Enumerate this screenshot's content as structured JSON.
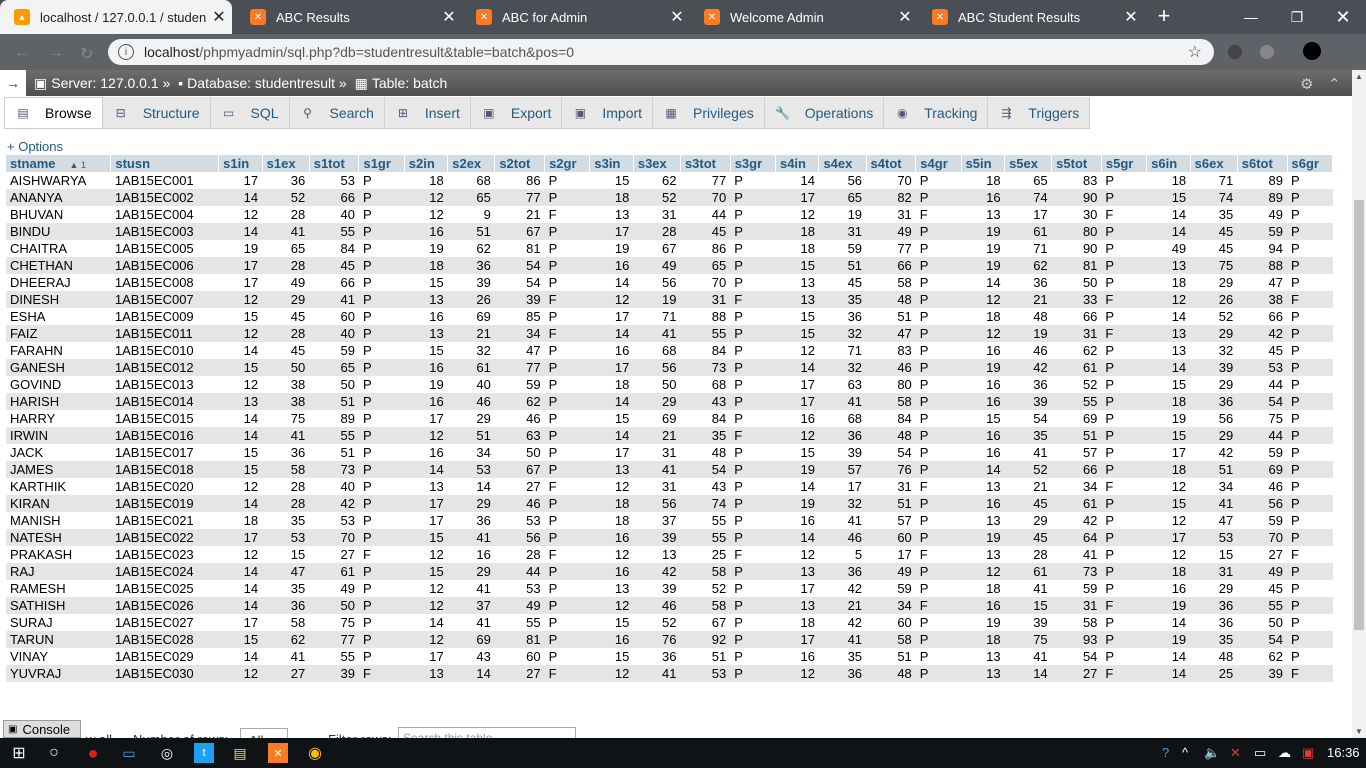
{
  "browser": {
    "tabs": [
      {
        "title": "localhost / 127.0.0.1 / studentr",
        "active": true,
        "icon": "phpmyadmin-icon"
      },
      {
        "title": "ABC Results",
        "active": false,
        "icon": "xampp-icon"
      },
      {
        "title": "ABC for Admin",
        "active": false,
        "icon": "xampp-icon"
      },
      {
        "title": "Welcome Admin",
        "active": false,
        "icon": "xampp-icon"
      },
      {
        "title": "ABC Student Results",
        "active": false,
        "icon": "xampp-icon"
      }
    ],
    "url_host": "localhost",
    "url_path": "/phpmyadmin/sql.php?db=studentresult&table=batch&pos=0"
  },
  "breadcrumb": {
    "server": "Server: 127.0.0.1 »",
    "database": "Database: studentresult »",
    "table": "Table: batch"
  },
  "menu_tabs": [
    {
      "label": "Browse",
      "selected": true,
      "icon": "browse-icon"
    },
    {
      "label": "Structure",
      "selected": false,
      "icon": "structure-icon"
    },
    {
      "label": "SQL",
      "selected": false,
      "icon": "sql-icon"
    },
    {
      "label": "Search",
      "selected": false,
      "icon": "search-icon"
    },
    {
      "label": "Insert",
      "selected": false,
      "icon": "insert-icon"
    },
    {
      "label": "Export",
      "selected": false,
      "icon": "export-icon"
    },
    {
      "label": "Import",
      "selected": false,
      "icon": "import-icon"
    },
    {
      "label": "Privileges",
      "selected": false,
      "icon": "privileges-icon"
    },
    {
      "label": "Operations",
      "selected": false,
      "icon": "wrench-icon"
    },
    {
      "label": "Tracking",
      "selected": false,
      "icon": "eye-icon"
    },
    {
      "label": "Triggers",
      "selected": false,
      "icon": "triggers-icon"
    }
  ],
  "options_label": "+ Options",
  "table": {
    "sort_marker": "▲ 1",
    "columns": [
      "stname",
      "stusn",
      "s1in",
      "s1ex",
      "s1tot",
      "s1gr",
      "s2in",
      "s2ex",
      "s2tot",
      "s2gr",
      "s3in",
      "s3ex",
      "s3tot",
      "s3gr",
      "s4in",
      "s4ex",
      "s4tot",
      "s4gr",
      "s5in",
      "s5ex",
      "s5tot",
      "s5gr",
      "s6in",
      "s6ex",
      "s6tot",
      "s6gr"
    ],
    "rows": [
      [
        "AISHWARYA",
        "1AB15EC001",
        "17",
        "36",
        "53",
        "P",
        "18",
        "68",
        "86",
        "P",
        "15",
        "62",
        "77",
        "P",
        "14",
        "56",
        "70",
        "P",
        "18",
        "65",
        "83",
        "P",
        "18",
        "71",
        "89",
        "P"
      ],
      [
        "ANANYA",
        "1AB15EC002",
        "14",
        "52",
        "66",
        "P",
        "12",
        "65",
        "77",
        "P",
        "18",
        "52",
        "70",
        "P",
        "17",
        "65",
        "82",
        "P",
        "16",
        "74",
        "90",
        "P",
        "15",
        "74",
        "89",
        "P"
      ],
      [
        "BHUVAN",
        "1AB15EC004",
        "12",
        "28",
        "40",
        "P",
        "12",
        "9",
        "21",
        "F",
        "13",
        "31",
        "44",
        "P",
        "12",
        "19",
        "31",
        "F",
        "13",
        "17",
        "30",
        "F",
        "14",
        "35",
        "49",
        "P"
      ],
      [
        "BINDU",
        "1AB15EC003",
        "14",
        "41",
        "55",
        "P",
        "16",
        "51",
        "67",
        "P",
        "17",
        "28",
        "45",
        "P",
        "18",
        "31",
        "49",
        "P",
        "19",
        "61",
        "80",
        "P",
        "14",
        "45",
        "59",
        "P"
      ],
      [
        "CHAITRA",
        "1AB15EC005",
        "19",
        "65",
        "84",
        "P",
        "19",
        "62",
        "81",
        "P",
        "19",
        "67",
        "86",
        "P",
        "18",
        "59",
        "77",
        "P",
        "19",
        "71",
        "90",
        "P",
        "49",
        "45",
        "94",
        "P"
      ],
      [
        "CHETHAN",
        "1AB15EC006",
        "17",
        "28",
        "45",
        "P",
        "18",
        "36",
        "54",
        "P",
        "16",
        "49",
        "65",
        "P",
        "15",
        "51",
        "66",
        "P",
        "19",
        "62",
        "81",
        "P",
        "13",
        "75",
        "88",
        "P"
      ],
      [
        "DHEERAJ",
        "1AB15EC008",
        "17",
        "49",
        "66",
        "P",
        "15",
        "39",
        "54",
        "P",
        "14",
        "56",
        "70",
        "P",
        "13",
        "45",
        "58",
        "P",
        "14",
        "36",
        "50",
        "P",
        "18",
        "29",
        "47",
        "P"
      ],
      [
        "DINESH",
        "1AB15EC007",
        "12",
        "29",
        "41",
        "P",
        "13",
        "26",
        "39",
        "F",
        "12",
        "19",
        "31",
        "F",
        "13",
        "35",
        "48",
        "P",
        "12",
        "21",
        "33",
        "F",
        "12",
        "26",
        "38",
        "F"
      ],
      [
        "ESHA",
        "1AB15EC009",
        "15",
        "45",
        "60",
        "P",
        "16",
        "69",
        "85",
        "P",
        "17",
        "71",
        "88",
        "P",
        "15",
        "36",
        "51",
        "P",
        "18",
        "48",
        "66",
        "P",
        "14",
        "52",
        "66",
        "P"
      ],
      [
        "FAIZ",
        "1AB15EC011",
        "12",
        "28",
        "40",
        "P",
        "13",
        "21",
        "34",
        "F",
        "14",
        "41",
        "55",
        "P",
        "15",
        "32",
        "47",
        "P",
        "12",
        "19",
        "31",
        "F",
        "13",
        "29",
        "42",
        "P"
      ],
      [
        "FARAHN",
        "1AB15EC010",
        "14",
        "45",
        "59",
        "P",
        "15",
        "32",
        "47",
        "P",
        "16",
        "68",
        "84",
        "P",
        "12",
        "71",
        "83",
        "P",
        "16",
        "46",
        "62",
        "P",
        "13",
        "32",
        "45",
        "P"
      ],
      [
        "GANESH",
        "1AB15EC012",
        "15",
        "50",
        "65",
        "P",
        "16",
        "61",
        "77",
        "P",
        "17",
        "56",
        "73",
        "P",
        "14",
        "32",
        "46",
        "P",
        "19",
        "42",
        "61",
        "P",
        "14",
        "39",
        "53",
        "P"
      ],
      [
        "GOVIND",
        "1AB15EC013",
        "12",
        "38",
        "50",
        "P",
        "19",
        "40",
        "59",
        "P",
        "18",
        "50",
        "68",
        "P",
        "17",
        "63",
        "80",
        "P",
        "16",
        "36",
        "52",
        "P",
        "15",
        "29",
        "44",
        "P"
      ],
      [
        "HARISH",
        "1AB15EC014",
        "13",
        "38",
        "51",
        "P",
        "16",
        "46",
        "62",
        "P",
        "14",
        "29",
        "43",
        "P",
        "17",
        "41",
        "58",
        "P",
        "16",
        "39",
        "55",
        "P",
        "18",
        "36",
        "54",
        "P"
      ],
      [
        "HARRY",
        "1AB15EC015",
        "14",
        "75",
        "89",
        "P",
        "17",
        "29",
        "46",
        "P",
        "15",
        "69",
        "84",
        "P",
        "16",
        "68",
        "84",
        "P",
        "15",
        "54",
        "69",
        "P",
        "19",
        "56",
        "75",
        "P"
      ],
      [
        "IRWIN",
        "1AB15EC016",
        "14",
        "41",
        "55",
        "P",
        "12",
        "51",
        "63",
        "P",
        "14",
        "21",
        "35",
        "F",
        "12",
        "36",
        "48",
        "P",
        "16",
        "35",
        "51",
        "P",
        "15",
        "29",
        "44",
        "P"
      ],
      [
        "JACK",
        "1AB15EC017",
        "15",
        "36",
        "51",
        "P",
        "16",
        "34",
        "50",
        "P",
        "17",
        "31",
        "48",
        "P",
        "15",
        "39",
        "54",
        "P",
        "16",
        "41",
        "57",
        "P",
        "17",
        "42",
        "59",
        "P"
      ],
      [
        "JAMES",
        "1AB15EC018",
        "15",
        "58",
        "73",
        "P",
        "14",
        "53",
        "67",
        "P",
        "13",
        "41",
        "54",
        "P",
        "19",
        "57",
        "76",
        "P",
        "14",
        "52",
        "66",
        "P",
        "18",
        "51",
        "69",
        "P"
      ],
      [
        "KARTHIK",
        "1AB15EC020",
        "12",
        "28",
        "40",
        "P",
        "13",
        "14",
        "27",
        "F",
        "12",
        "31",
        "43",
        "P",
        "14",
        "17",
        "31",
        "F",
        "13",
        "21",
        "34",
        "F",
        "12",
        "34",
        "46",
        "P"
      ],
      [
        "KIRAN",
        "1AB15EC019",
        "14",
        "28",
        "42",
        "P",
        "17",
        "29",
        "46",
        "P",
        "18",
        "56",
        "74",
        "P",
        "19",
        "32",
        "51",
        "P",
        "16",
        "45",
        "61",
        "P",
        "15",
        "41",
        "56",
        "P"
      ],
      [
        "MANISH",
        "1AB15EC021",
        "18",
        "35",
        "53",
        "P",
        "17",
        "36",
        "53",
        "P",
        "18",
        "37",
        "55",
        "P",
        "16",
        "41",
        "57",
        "P",
        "13",
        "29",
        "42",
        "P",
        "12",
        "47",
        "59",
        "P"
      ],
      [
        "NATESH",
        "1AB15EC022",
        "17",
        "53",
        "70",
        "P",
        "15",
        "41",
        "56",
        "P",
        "16",
        "39",
        "55",
        "P",
        "14",
        "46",
        "60",
        "P",
        "19",
        "45",
        "64",
        "P",
        "17",
        "53",
        "70",
        "P"
      ],
      [
        "PRAKASH",
        "1AB15EC023",
        "12",
        "15",
        "27",
        "F",
        "12",
        "16",
        "28",
        "F",
        "12",
        "13",
        "25",
        "F",
        "12",
        "5",
        "17",
        "F",
        "13",
        "28",
        "41",
        "P",
        "12",
        "15",
        "27",
        "F"
      ],
      [
        "RAJ",
        "1AB15EC024",
        "14",
        "47",
        "61",
        "P",
        "15",
        "29",
        "44",
        "P",
        "16",
        "42",
        "58",
        "P",
        "13",
        "36",
        "49",
        "P",
        "12",
        "61",
        "73",
        "P",
        "18",
        "31",
        "49",
        "P"
      ],
      [
        "RAMESH",
        "1AB15EC025",
        "14",
        "35",
        "49",
        "P",
        "12",
        "41",
        "53",
        "P",
        "13",
        "39",
        "52",
        "P",
        "17",
        "42",
        "59",
        "P",
        "18",
        "41",
        "59",
        "P",
        "16",
        "29",
        "45",
        "P"
      ],
      [
        "SATHISH",
        "1AB15EC026",
        "14",
        "36",
        "50",
        "P",
        "12",
        "37",
        "49",
        "P",
        "12",
        "46",
        "58",
        "P",
        "13",
        "21",
        "34",
        "F",
        "16",
        "15",
        "31",
        "F",
        "19",
        "36",
        "55",
        "P"
      ],
      [
        "SURAJ",
        "1AB15EC027",
        "17",
        "58",
        "75",
        "P",
        "14",
        "41",
        "55",
        "P",
        "15",
        "52",
        "67",
        "P",
        "18",
        "42",
        "60",
        "P",
        "19",
        "39",
        "58",
        "P",
        "14",
        "36",
        "50",
        "P"
      ],
      [
        "TARUN",
        "1AB15EC028",
        "15",
        "62",
        "77",
        "P",
        "12",
        "69",
        "81",
        "P",
        "16",
        "76",
        "92",
        "P",
        "17",
        "41",
        "58",
        "P",
        "18",
        "75",
        "93",
        "P",
        "19",
        "35",
        "54",
        "P"
      ],
      [
        "VINAY",
        "1AB15EC029",
        "14",
        "41",
        "55",
        "P",
        "17",
        "43",
        "60",
        "P",
        "15",
        "36",
        "51",
        "P",
        "16",
        "35",
        "51",
        "P",
        "13",
        "41",
        "54",
        "P",
        "14",
        "48",
        "62",
        "P"
      ],
      [
        "YUVRAJ",
        "1AB15EC030",
        "12",
        "27",
        "39",
        "F",
        "13",
        "14",
        "27",
        "F",
        "12",
        "41",
        "53",
        "P",
        "12",
        "36",
        "48",
        "P",
        "13",
        "14",
        "27",
        "F",
        "14",
        "25",
        "39",
        "F"
      ]
    ]
  },
  "bottom": {
    "console_label": "Console",
    "show_all_partial": "w all",
    "num_rows_label": "Number of rows:",
    "num_rows_value": "All",
    "filter_label": "Filter rows:",
    "filter_placeholder": "Search this table"
  },
  "taskbar": {
    "time": "16:36"
  },
  "colors": {
    "header_bg": "#d3dce3",
    "link": "#235a81",
    "row_alt": "#e5e5e5"
  }
}
